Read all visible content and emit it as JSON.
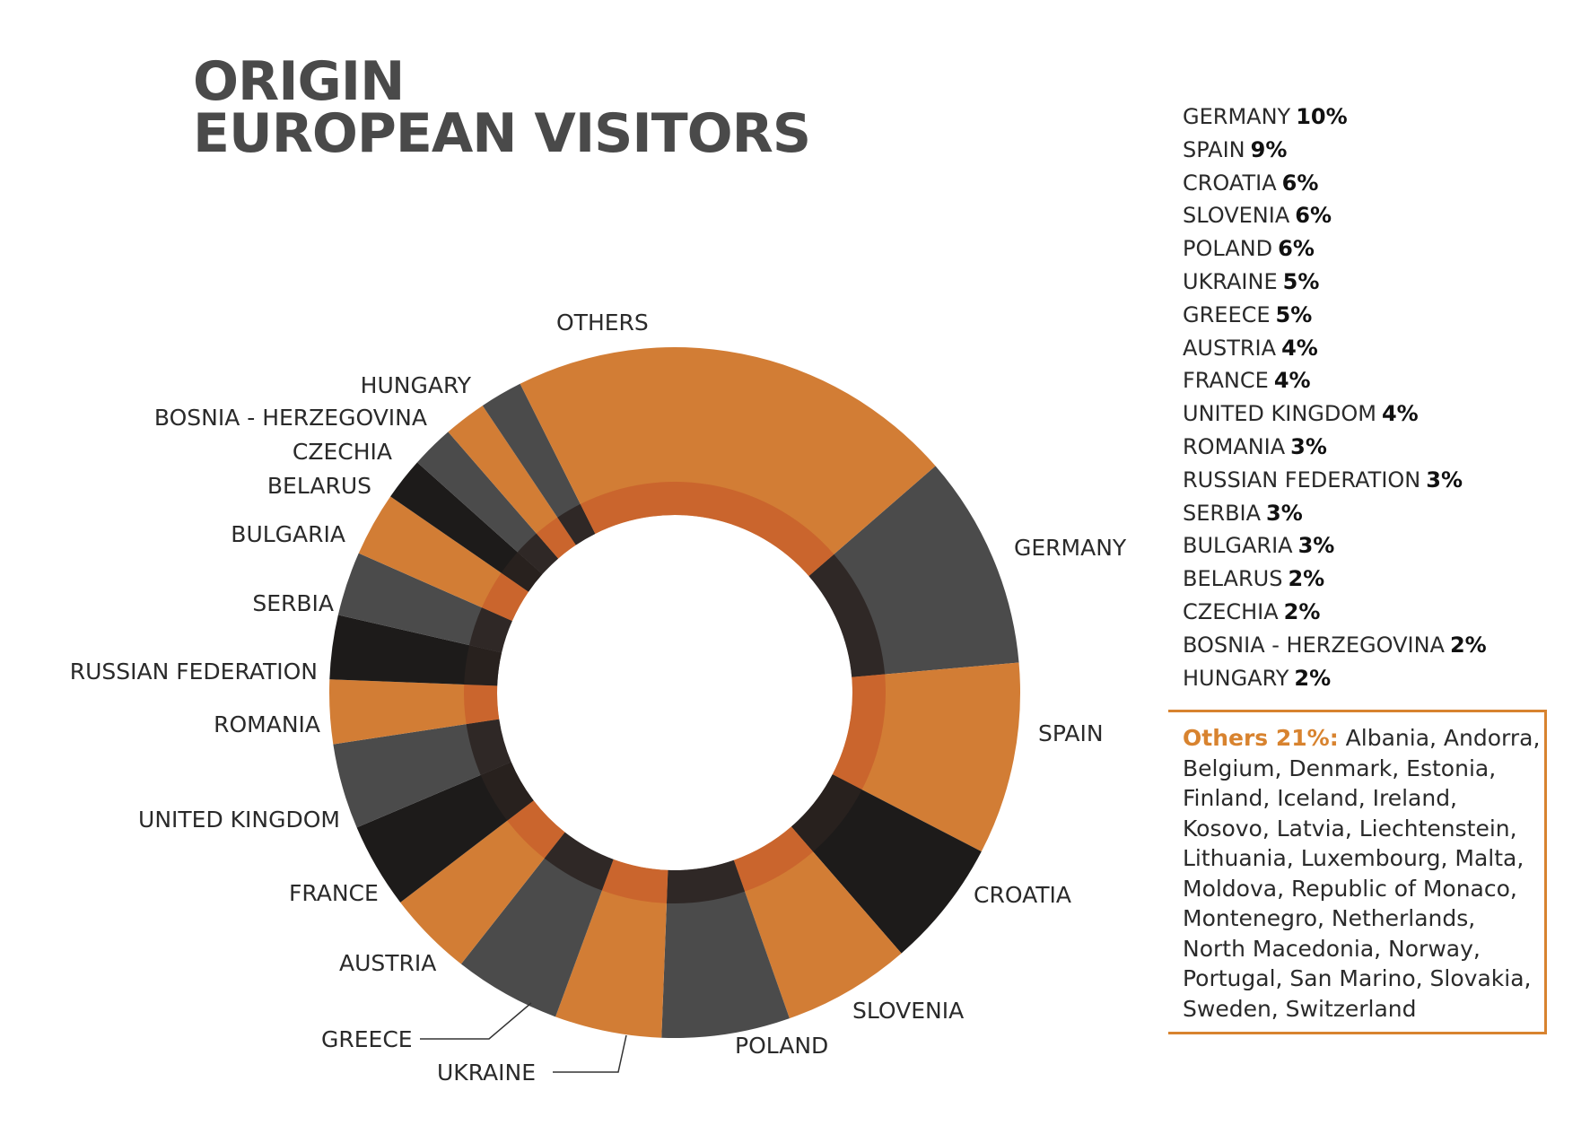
{
  "title": {
    "line1": "ORIGIN",
    "line2": "EUROPEAN VISITORS"
  },
  "colors": {
    "orange": "#d27d35",
    "dark_gray": "#4b4b4b",
    "black": "#1d1b1a",
    "inner_ring": "#c8602f",
    "box_border": "#d8832f"
  },
  "chart_data": {
    "type": "pie",
    "variant": "donut",
    "unit": "%",
    "categories": [
      "GERMANY",
      "SPAIN",
      "CROATIA",
      "SLOVENIA",
      "POLAND",
      "UKRAINE",
      "GREECE",
      "AUSTRIA",
      "FRANCE",
      "UNITED KINGDOM",
      "ROMANIA",
      "RUSSIAN FEDERATION",
      "SERBIA",
      "BULGARIA",
      "BELARUS",
      "CZECHIA",
      "BOSNIA - HERZEGOVINA",
      "HUNGARY",
      "OTHERS"
    ],
    "values": [
      10,
      9,
      6,
      6,
      6,
      5,
      5,
      4,
      4,
      4,
      3,
      3,
      3,
      3,
      2,
      2,
      2,
      2,
      21
    ],
    "colors": [
      "#4b4b4b",
      "#d27d35",
      "#1d1b1a",
      "#d27d35",
      "#4b4b4b",
      "#d27d35",
      "#4b4b4b",
      "#d27d35",
      "#1d1b1a",
      "#4b4b4b",
      "#d27d35",
      "#1d1b1a",
      "#4b4b4b",
      "#d27d35",
      "#1d1b1a",
      "#4b4b4b",
      "#d27d35",
      "#4b4b4b",
      "#d27d35"
    ],
    "legend": [
      {
        "name": "GERMANY",
        "value": "10%"
      },
      {
        "name": "SPAIN",
        "value": "9%"
      },
      {
        "name": "CROATIA",
        "value": "6%"
      },
      {
        "name": "SLOVENIA",
        "value": "6%"
      },
      {
        "name": "POLAND",
        "value": "6%"
      },
      {
        "name": "UKRAINE",
        "value": "5%"
      },
      {
        "name": "GREECE",
        "value": "5%"
      },
      {
        "name": "AUSTRIA",
        "value": "4%"
      },
      {
        "name": "FRANCE",
        "value": "4%"
      },
      {
        "name": "UNITED KINGDOM",
        "value": "4%"
      },
      {
        "name": "ROMANIA",
        "value": "3%"
      },
      {
        "name": "RUSSIAN FEDERATION",
        "value": "3%"
      },
      {
        "name": "SERBIA",
        "value": "3%"
      },
      {
        "name": "BULGARIA",
        "value": "3%"
      },
      {
        "name": "BELARUS",
        "value": "2%"
      },
      {
        "name": "CZECHIA",
        "value": "2%"
      },
      {
        "name": "BOSNIA - HERZEGOVINA",
        "value": "2%"
      },
      {
        "name": "HUNGARY",
        "value": "2%"
      }
    ],
    "legend_placement": "right"
  },
  "others_box": {
    "heading": "Others 21%:",
    "text": "Albania, Andorra, Belgium, Denmark, Estonia, Finland, Iceland, Ireland, Kosovo, Latvia, Liechtenstein, Lithuania, Luxembourg, Malta, Moldova, Republic of Monaco, Montenegro, Netherlands, North Macedonia, Norway, Portugal, San Marino, Slovakia, Sweden, Switzerland"
  }
}
